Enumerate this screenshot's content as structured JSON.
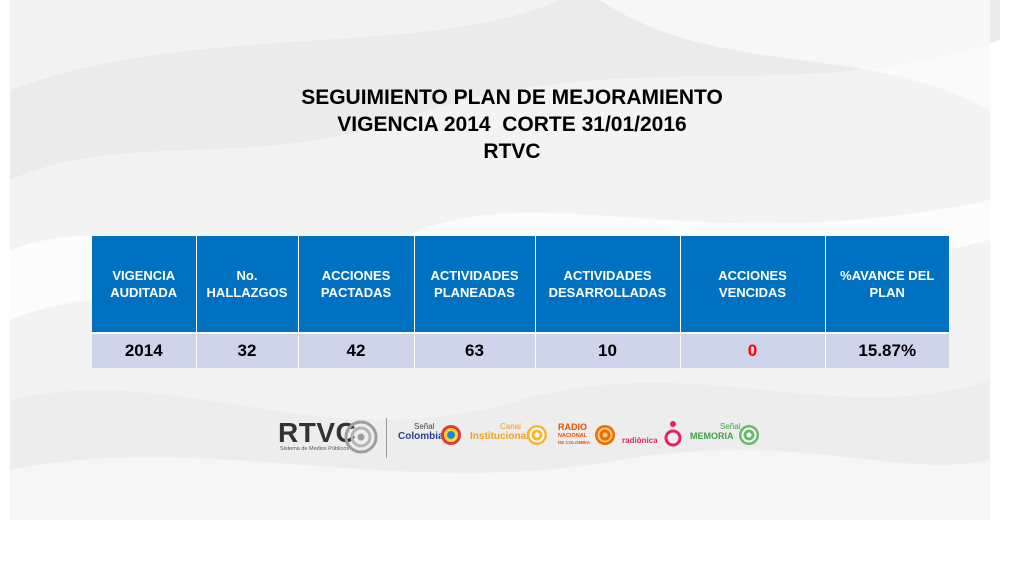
{
  "title": {
    "line1": "SEGUIMIENTO PLAN DE MEJORAMIENTO",
    "line2": "VIGENCIA 2014  CORTE 31/01/2016",
    "line3": "RTVC"
  },
  "table": {
    "headers": [
      "VIGENCIA AUDITADA",
      "No. HALLAZGOS",
      "ACCIONES PACTADAS",
      "ACTIVIDADES PLANEADAS",
      "ACTIVIDADES DESARROLLADAS",
      "ACCIONES VENCIDAS",
      "%AVANCE DEL PLAN"
    ],
    "row": [
      "2014",
      "32",
      "42",
      "63",
      "10",
      "0",
      "15.87%"
    ]
  },
  "logos": {
    "rtvc": {
      "name": "RTVC",
      "tagline": "Sistema de Medios Públicos"
    },
    "senal_colombia": {
      "line1": "Señal",
      "line2": "Colombia"
    },
    "canal_institucional": {
      "line1": "Canal",
      "line2": "Institucional"
    },
    "radio_nacional": {
      "line1": "RADIO",
      "line2": "NACIONAL",
      "line3": "DE COLOMBIA"
    },
    "radionica": {
      "name": "radiónica"
    },
    "senal_memoria": {
      "line1": "Señal",
      "line2": "MEMORIA"
    }
  },
  "colors": {
    "header_blue": "#0070c0",
    "row_lavender": "#ced5ea",
    "overdue_red": "#ff0000"
  }
}
